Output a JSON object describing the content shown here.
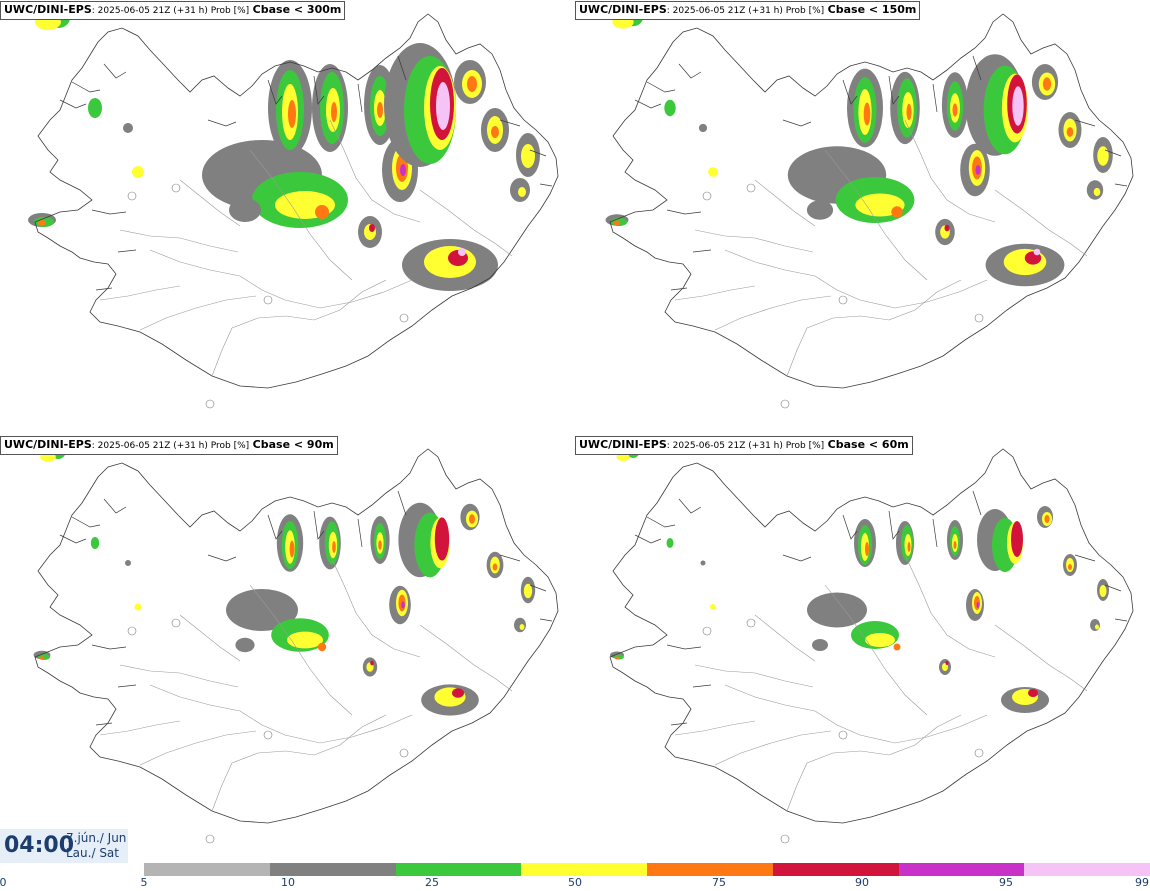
{
  "panels": [
    {
      "model": "UWC/DINI-EPS",
      "meta": ": 2025-06-05 21Z (+31 h) Prob [%]",
      "param": "Cbase < 300m"
    },
    {
      "model": "UWC/DINI-EPS",
      "meta": ": 2025-06-05 21Z (+31 h) Prob [%]",
      "param": "Cbase < 150m"
    },
    {
      "model": "UWC/DINI-EPS",
      "meta": ": 2025-06-05 21Z (+31 h) Prob [%]",
      "param": "Cbase < 90m"
    },
    {
      "model": "UWC/DINI-EPS",
      "meta": ": 2025-06-05 21Z (+31 h) Prob [%]",
      "param": "Cbase < 60m"
    }
  ],
  "valid_time": {
    "time": "04:00",
    "date_line1": "7.jún./ Jun",
    "date_line2": "Lau./ Sat"
  },
  "legend": {
    "ticks": [
      "0",
      "5",
      "10",
      "25",
      "50",
      "75",
      "90",
      "95",
      "99"
    ],
    "colors": [
      "#b4b4b4",
      "#808080",
      "#3cc83c",
      "#ffff32",
      "#ff7814",
      "#d2143c",
      "#c832c8",
      "#f5c3f5"
    ]
  }
}
